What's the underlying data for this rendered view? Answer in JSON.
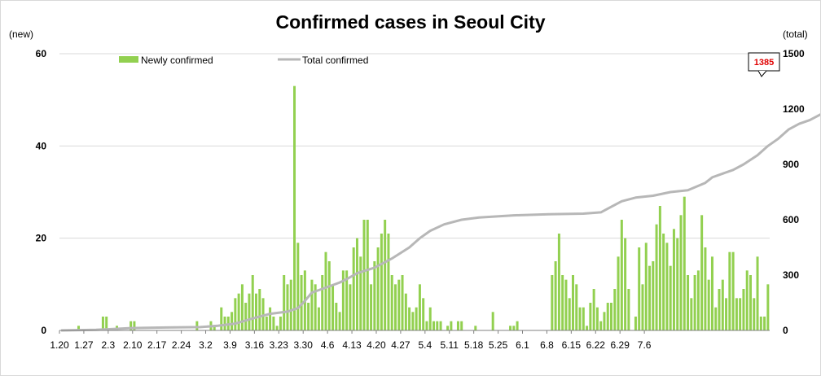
{
  "chart_data": {
    "type": "bar",
    "title": "Confirmed cases in Seoul City",
    "left_axis_unit": "(new)",
    "right_axis_unit": "(total)",
    "left_ylim": [
      0,
      60
    ],
    "left_ticks": [
      0,
      20,
      40,
      60
    ],
    "right_ylim": [
      0,
      1500
    ],
    "right_ticks": [
      0,
      300,
      600,
      900,
      1200,
      1500
    ],
    "x_tick_labels": [
      "1.20",
      "1.27",
      "2.3",
      "2.10",
      "2.17",
      "2.24",
      "3.2",
      "3.9",
      "3.16",
      "3.23",
      "3.30",
      "4.6",
      "4.13",
      "4.20",
      "4.27",
      "5.4",
      "5.11",
      "5.18",
      "5.25",
      "6.1",
      "6.8",
      "6.15",
      "6.22",
      "6.29",
      "7.6"
    ],
    "legend": {
      "position": "top-left"
    },
    "grid": true,
    "series": [
      {
        "name": "Newly confirmed",
        "type": "bar",
        "axis": "left",
        "color": "#92d050",
        "values": [
          0,
          0,
          0,
          0,
          0,
          1,
          0,
          0,
          0,
          0,
          0,
          0,
          3,
          3,
          0,
          0,
          1,
          0,
          0,
          0,
          2,
          2,
          0,
          0,
          0,
          0,
          0,
          0,
          0,
          0,
          0,
          0,
          0,
          0,
          0,
          0,
          0,
          0,
          0,
          2,
          0,
          0,
          0,
          2,
          1,
          0,
          5,
          3,
          3,
          4,
          7,
          8,
          10,
          6,
          8,
          12,
          8,
          9,
          7,
          3,
          5,
          3,
          1,
          3,
          12,
          10,
          11,
          53,
          19,
          12,
          13,
          6,
          11,
          10,
          5,
          12,
          17,
          15,
          10,
          6,
          4,
          13,
          13,
          10,
          18,
          20,
          16,
          24,
          24,
          10,
          15,
          18,
          21,
          24,
          21,
          12,
          10,
          11,
          12,
          8,
          5,
          4,
          5,
          10,
          7,
          2,
          5,
          2,
          2,
          2,
          0,
          1,
          2,
          0,
          2,
          2,
          0,
          0,
          0,
          1,
          0,
          0,
          0,
          0,
          4,
          0,
          0,
          0,
          0,
          1,
          1,
          2,
          0,
          0,
          0,
          0,
          0,
          0,
          0,
          0,
          0,
          12,
          15,
          21,
          12,
          11,
          7,
          12,
          10,
          5,
          5,
          1,
          6,
          9,
          5,
          2,
          4,
          6,
          6,
          9,
          16,
          24,
          20,
          9,
          0,
          3,
          18,
          10,
          19,
          14,
          15,
          23,
          27,
          21,
          19,
          14,
          22,
          20,
          25,
          29,
          12,
          7,
          12,
          13,
          25,
          18,
          11,
          16,
          5,
          9,
          11,
          7,
          17,
          17,
          7,
          7,
          9,
          13,
          12,
          7,
          16,
          3,
          3,
          10
        ],
        "total": 1385
      },
      {
        "name": "Total confirmed",
        "type": "line",
        "axis": "right",
        "color": "#b7b7b7",
        "points": [
          [
            0,
            0
          ],
          [
            10,
            3
          ],
          [
            20,
            13
          ],
          [
            30,
            16
          ],
          [
            40,
            18
          ],
          [
            45,
            25
          ],
          [
            50,
            37
          ],
          [
            55,
            65
          ],
          [
            60,
            90
          ],
          [
            65,
            102
          ],
          [
            68,
            121
          ],
          [
            70,
            160
          ],
          [
            72,
            205
          ],
          [
            75,
            225
          ],
          [
            80,
            260
          ],
          [
            82,
            278
          ],
          [
            85,
            310
          ],
          [
            90,
            340
          ],
          [
            95,
            390
          ],
          [
            100,
            450
          ],
          [
            103,
            500
          ],
          [
            106,
            540
          ],
          [
            110,
            575
          ],
          [
            115,
            600
          ],
          [
            120,
            612
          ],
          [
            130,
            624
          ],
          [
            140,
            630
          ],
          [
            150,
            633
          ],
          [
            155,
            640
          ],
          [
            158,
            670
          ],
          [
            161,
            700
          ],
          [
            165,
            720
          ],
          [
            170,
            730
          ],
          [
            175,
            750
          ],
          [
            180,
            760
          ],
          [
            185,
            800
          ],
          [
            187,
            830
          ],
          [
            190,
            850
          ],
          [
            193,
            870
          ],
          [
            196,
            900
          ],
          [
            200,
            950
          ],
          [
            203,
            1000
          ],
          [
            206,
            1040
          ],
          [
            209,
            1090
          ],
          [
            212,
            1120
          ],
          [
            215,
            1140
          ],
          [
            218,
            1170
          ],
          [
            221,
            1200
          ],
          [
            224,
            1220
          ],
          [
            227,
            1240
          ],
          [
            230,
            1270
          ],
          [
            233,
            1300
          ],
          [
            236,
            1320
          ],
          [
            239,
            1340
          ],
          [
            242,
            1360
          ],
          [
            245,
            1380
          ],
          [
            247,
            1385
          ]
        ]
      }
    ],
    "callout": {
      "label": "1385",
      "series": "Total confirmed"
    }
  }
}
